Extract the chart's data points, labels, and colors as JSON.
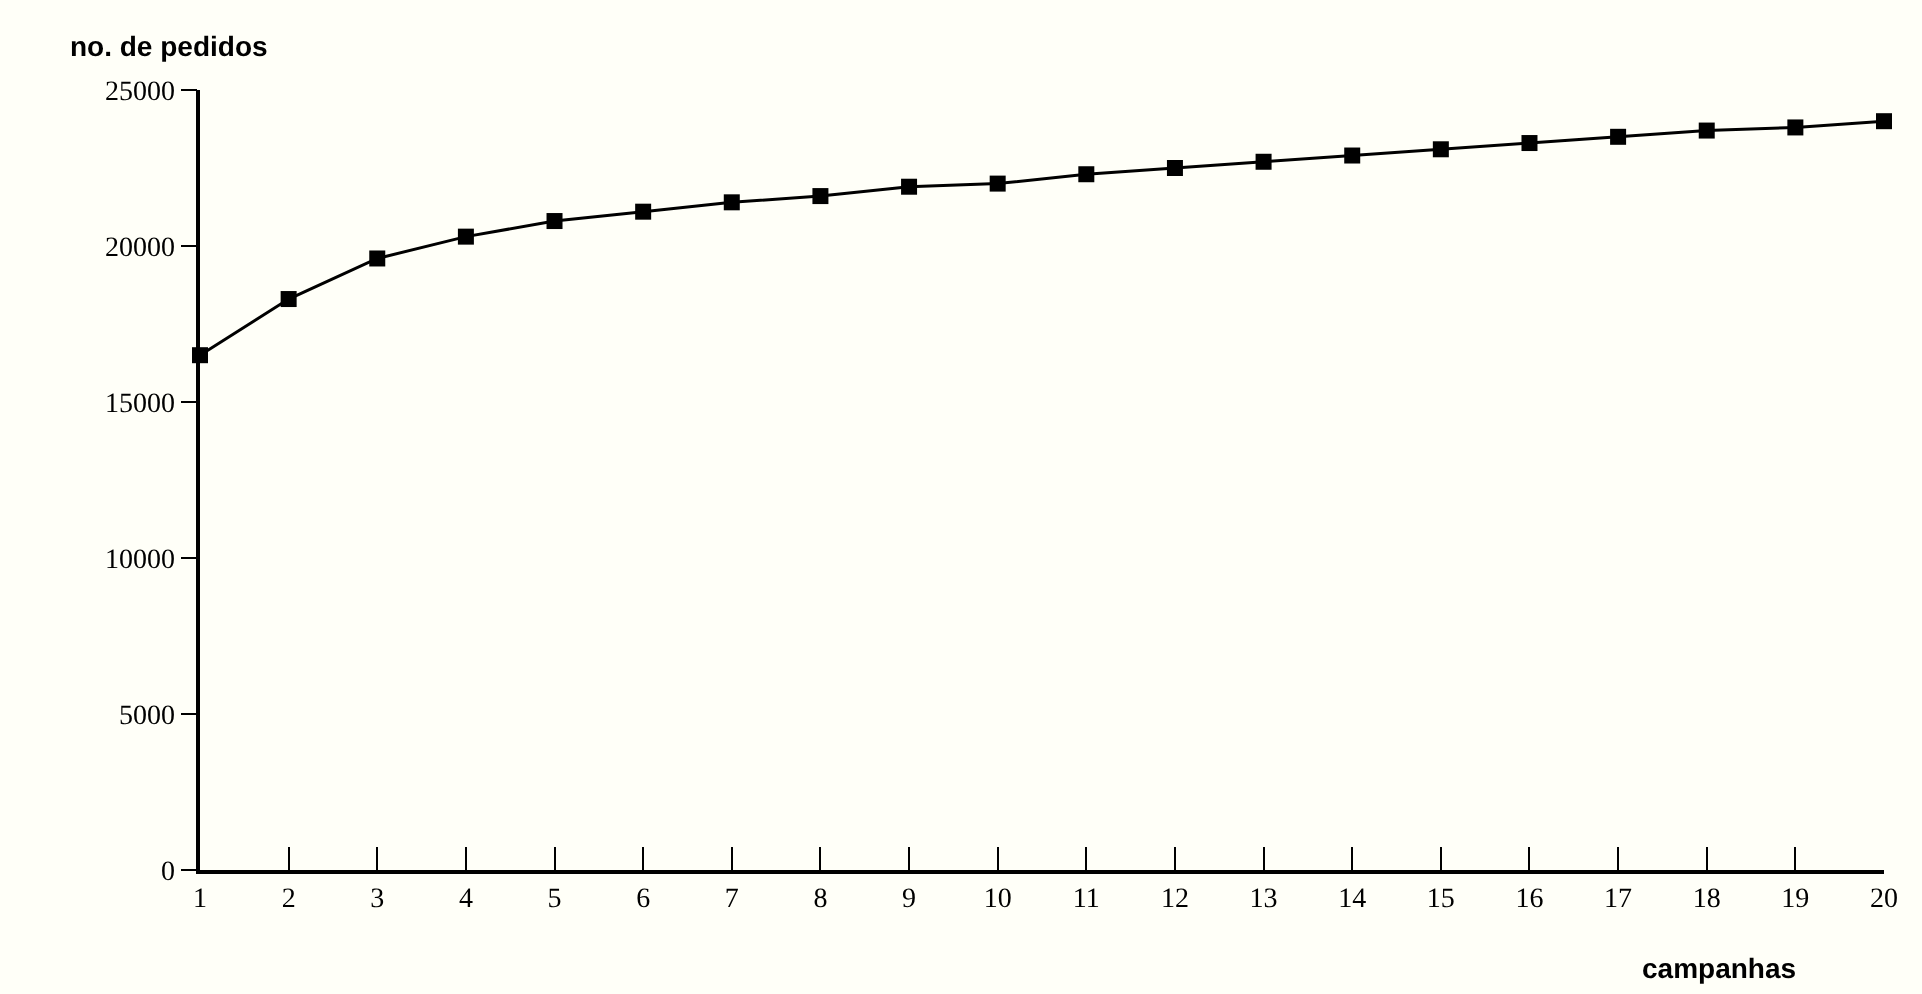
{
  "chart_data": {
    "type": "line",
    "xlabel": "campanhas",
    "ylabel": "no. de pedidos",
    "x": [
      1,
      2,
      3,
      4,
      5,
      6,
      7,
      8,
      9,
      10,
      11,
      12,
      13,
      14,
      15,
      16,
      17,
      18,
      19,
      20
    ],
    "series": [
      {
        "color": "#000000",
        "values": [
          16500,
          18300,
          19600,
          20300,
          20800,
          21100,
          21400,
          21600,
          21900,
          22000,
          22300,
          22500,
          22700,
          22900,
          23100,
          23300,
          23500,
          23700,
          23800,
          24000
        ]
      }
    ],
    "xlim": [
      1,
      20
    ],
    "xticks": [
      1,
      2,
      3,
      4,
      5,
      6,
      7,
      8,
      9,
      10,
      11,
      12,
      13,
      14,
      15,
      16,
      17,
      18,
      19,
      20
    ],
    "ylim": [
      0,
      25000
    ],
    "yticks": [
      0,
      5000,
      10000,
      15000,
      20000,
      25000
    ],
    "grid": false,
    "marker": "square",
    "line_style": "solid"
  }
}
